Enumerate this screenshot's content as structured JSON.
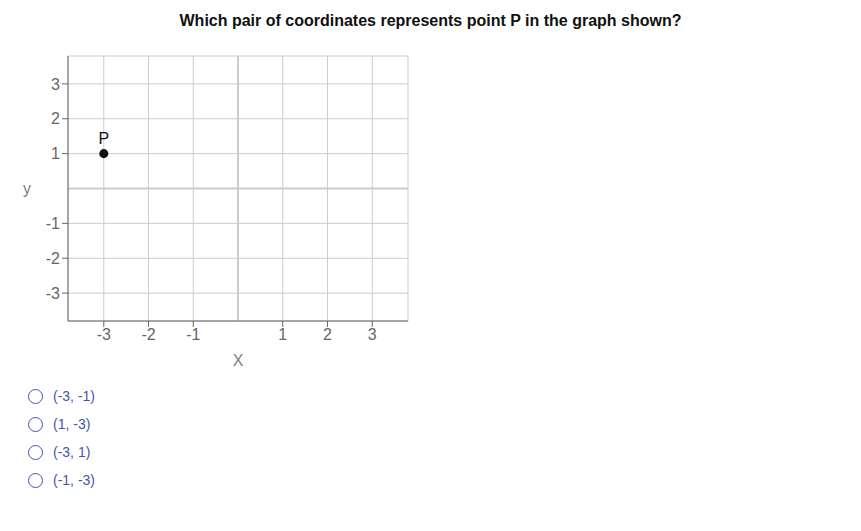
{
  "chart_data": {
    "type": "scatter",
    "title": "Which pair of coordinates represents point P in the graph shown?",
    "x_label": "X",
    "y_label": "y",
    "xlim": [
      -3.8,
      3.8
    ],
    "ylim": [
      -3.8,
      3.8
    ],
    "xticks": [
      -3,
      -2,
      -1,
      1,
      2,
      3
    ],
    "yticks": [
      -3,
      -2,
      -1,
      1,
      2,
      3
    ],
    "grid": true,
    "color": "#111111",
    "annotations": [
      {
        "text": "P",
        "x": -3,
        "y": 1
      },
      {
        "text": "(-3, -1)",
        "color": "#4455aa"
      },
      {
        "text": "(1, -3)",
        "color": "#4455aa"
      },
      {
        "text": "(-3, 1)",
        "color": "#4455aa"
      },
      {
        "text": "(-1, -3)",
        "color": "#4455aa"
      }
    ]
  }
}
